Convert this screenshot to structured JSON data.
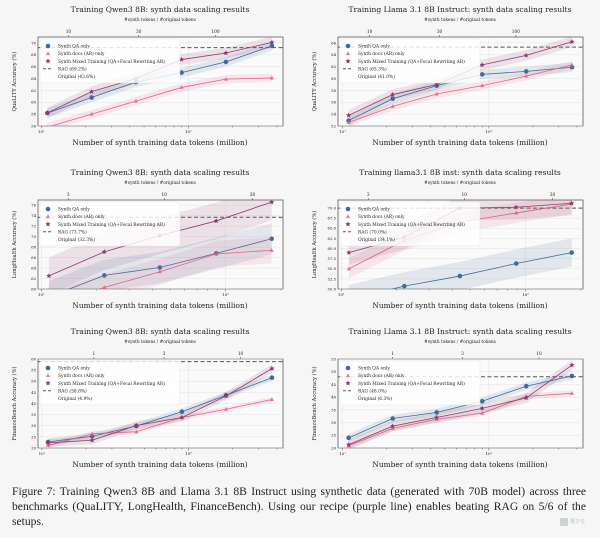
{
  "figure": {
    "caption": "Figure 7: Training Qwen3 8B and Llama 3.1 8B Instruct using synthetic data (generated with 70B model) across three benchmarks (QuaLITY, LongHealth, FinanceBench). Using our recipe (purple line) enables beating RAG on 5/6 of the setups.",
    "watermark": "量子位"
  },
  "colors": {
    "qa": "#3f6b99",
    "docs": "#e06585",
    "mixed": "#8c3a70",
    "rag": "#555555"
  },
  "chart_data": [
    {
      "type": "line",
      "title": "Training Qwen3 8B: synth data scaling results",
      "subtitle": "#synth tokens / #original tokens",
      "xlabel": "Number of synth training data tokens (million)",
      "ylabel": "QuaLITY Accuracy (%)",
      "xscale": "log",
      "xlim": [
        9.5,
        440
      ],
      "ylim": [
        56,
        71
      ],
      "yticks": [
        56,
        58,
        60,
        62,
        64,
        66,
        68,
        70
      ],
      "xticks": [
        {
          "value": 10,
          "label": "10¹"
        },
        {
          "value": 100,
          "label": "10²"
        }
      ],
      "top_ticks": [
        {
          "value": 15.3,
          "label": "10"
        },
        {
          "value": 46,
          "label": "30"
        },
        {
          "value": 153,
          "label": "100"
        }
      ],
      "x": [
        11,
        22,
        44,
        90,
        180,
        370
      ],
      "series": [
        {
          "key": "qa",
          "name": "Synth QA only",
          "values": [
            58.2,
            60.8,
            63.4,
            65.0,
            66.8,
            69.5
          ],
          "band": 0.8
        },
        {
          "key": "docs",
          "name": "Synth docs (AR) only",
          "values": [
            55.8,
            58.0,
            60.2,
            62.5,
            63.9,
            64.1
          ],
          "band": 0.7
        },
        {
          "key": "mixed",
          "name": "Synth Mixed Training (QA+Focal Rewriting AR)",
          "values": [
            58.2,
            61.8,
            64.0,
            67.2,
            68.3,
            70.1
          ],
          "band": 0.9
        }
      ],
      "rag": {
        "label": "RAG (69.2%)",
        "value": 69.2
      },
      "original": {
        "label": "Original (43.6%)"
      },
      "legend": "top-left"
    },
    {
      "type": "line",
      "title": "Training Llama 3.1 8B Instruct: synth data scaling results",
      "subtitle": "#synth tokens / #original tokens",
      "xlabel": "Number of synth training data tokens (million)",
      "ylabel": "QuaLITY Accuracy (%)",
      "xscale": "log",
      "xlim": [
        9.3,
        440
      ],
      "ylim": [
        52,
        67
      ],
      "yticks": [
        52,
        54,
        56,
        58,
        60,
        62,
        64,
        66
      ],
      "xticks": [
        {
          "value": 10,
          "label": "10¹"
        },
        {
          "value": 100,
          "label": "10²"
        }
      ],
      "top_ticks": [
        {
          "value": 15.3,
          "label": "10"
        },
        {
          "value": 46,
          "label": "30"
        },
        {
          "value": 153,
          "label": "100"
        }
      ],
      "x": [
        11,
        22,
        44,
        90,
        180,
        370
      ],
      "series": [
        {
          "key": "qa",
          "name": "Synth QA only",
          "values": [
            52.9,
            56.6,
            58.8,
            60.7,
            61.2,
            61.9
          ],
          "band": 0.8
        },
        {
          "key": "docs",
          "name": "Synth docs (AR) only",
          "values": [
            52.6,
            55.3,
            57.4,
            58.8,
            60.4,
            62.3
          ],
          "band": 0.7
        },
        {
          "key": "mixed",
          "name": "Synth Mixed Training (QA+Focal Rewriting AR)",
          "values": [
            53.8,
            57.3,
            59.0,
            62.3,
            63.9,
            66.2
          ],
          "band": 0.9
        }
      ],
      "rag": {
        "label": "RAG (65.3%)",
        "value": 65.3
      },
      "original": {
        "label": "Original (41.0%)"
      },
      "legend": "top-left"
    },
    {
      "type": "line",
      "title": "Training Qwen3 8B: synth data scaling results",
      "subtitle": "#synth tokens / #original tokens",
      "xlabel": "Number of synth training data tokens (million)",
      "ylabel": "LongHealth Accuracy (%)",
      "xscale": "log",
      "xlim": [
        9.6,
        205
      ],
      "ylim": [
        60,
        77
      ],
      "yticks": [
        60,
        62,
        64,
        66,
        68,
        70,
        72,
        74,
        76
      ],
      "xticks": [
        {
          "value": 10,
          "label": "10¹"
        },
        {
          "value": 100,
          "label": "10²"
        }
      ],
      "top_ticks": [
        {
          "value": 14,
          "label": "3"
        },
        {
          "value": 46.5,
          "label": "10"
        },
        {
          "value": 140,
          "label": "30"
        }
      ],
      "x": [
        11,
        22,
        44,
        89,
        178
      ],
      "series": [
        {
          "key": "qa",
          "name": "Synth QA only",
          "values": [
            58.5,
            62.6,
            64.1,
            66.8,
            69.6
          ],
          "band": 3.0
        },
        {
          "key": "docs",
          "name": "Synth docs (AR) only",
          "values": [
            57.0,
            60.3,
            63.3,
            66.7,
            67.4
          ],
          "band": 2.5
        },
        {
          "key": "mixed",
          "name": "Synth Mixed Training (QA+Focal Rewriting AR)",
          "values": [
            62.5,
            67.1,
            70.2,
            73.0,
            76.6
          ],
          "band": 3.5
        }
      ],
      "rag": {
        "label": "RAG (73.7%)",
        "value": 73.7
      },
      "original": {
        "label": "Original (32.3%)"
      },
      "legend": "top-left"
    },
    {
      "type": "line",
      "title": "Training llama3.1 8B inst: synth data scaling results",
      "subtitle": "#synth tokens / #original tokens",
      "xlabel": "Number of synth training data tokens (million)",
      "ylabel": "LongHealth Accuracy (%)",
      "xscale": "log",
      "xlim": [
        9.6,
        205
      ],
      "ylim": [
        50,
        72
      ],
      "yticks": [
        50.0,
        52.5,
        55.0,
        57.5,
        60.0,
        62.5,
        65.0,
        67.5,
        70.0
      ],
      "xticks": [
        {
          "value": 10,
          "label": "10¹"
        },
        {
          "value": 100,
          "label": "10²"
        }
      ],
      "top_ticks": [
        {
          "value": 14,
          "label": "3"
        },
        {
          "value": 46.5,
          "label": "10"
        },
        {
          "value": 140,
          "label": "30"
        }
      ],
      "x": [
        11,
        22,
        44,
        89,
        178
      ],
      "series": [
        {
          "key": "qa",
          "name": "Synth QA only",
          "values": [
            47.5,
            50.7,
            53.2,
            56.3,
            59.0
          ],
          "band": 3.5
        },
        {
          "key": "docs",
          "name": "Synth docs (AR) only",
          "values": [
            55.0,
            62.0,
            66.5,
            68.8,
            71.0
          ],
          "band": 2.5
        },
        {
          "key": "mixed",
          "name": "Synth Mixed Training (QA+Focal Rewriting AR)",
          "values": [
            59.0,
            62.8,
            70.0,
            70.2,
            71.2
          ],
          "band": 3.0
        }
      ],
      "rag": {
        "label": "RAG (70.0%)",
        "value": 70.0
      },
      "original": {
        "label": "Original (34.1%)"
      },
      "legend": "top-left"
    },
    {
      "type": "line",
      "title": "Training Qwen3 8B: synth data scaling results",
      "subtitle": "#synth tokens / #original tokens",
      "xlabel": "Number of synth training data tokens (million)",
      "ylabel": "FinanceBench Accuracy (%)",
      "xscale": "log",
      "xlim": [
        9.4,
        440
      ],
      "ylim": [
        20,
        60
      ],
      "yticks": [
        20,
        25,
        30,
        35,
        40,
        45,
        50,
        55,
        60
      ],
      "xticks": [
        {
          "value": 10,
          "label": "10¹"
        },
        {
          "value": 100,
          "label": "10²"
        }
      ],
      "top_ticks": [
        {
          "value": 22.6,
          "label": "1"
        },
        {
          "value": 68,
          "label": "3"
        },
        {
          "value": 226,
          "label": "10"
        }
      ],
      "x": [
        11,
        22,
        44,
        90,
        180,
        370
      ],
      "series": [
        {
          "key": "qa",
          "name": "Synth QA only",
          "values": [
            22.7,
            25.3,
            29.9,
            36.3,
            43.7,
            51.6
          ],
          "band": 1.5
        },
        {
          "key": "docs",
          "name": "Synth docs (AR) only",
          "values": [
            21.1,
            26.4,
            27.3,
            33.7,
            37.4,
            41.8
          ],
          "band": 1.2
        },
        {
          "key": "mixed",
          "name": "Synth Mixed Training (QA+Focal Rewriting AR)",
          "values": [
            22.3,
            23.5,
            30.1,
            33.7,
            43.4,
            55.7
          ],
          "band": 1.8
        }
      ],
      "rag": {
        "label": "RAG (58.8%)",
        "value": 58.8
      },
      "original": {
        "label": "Original (4.9%)"
      },
      "legend": "top-left"
    },
    {
      "type": "line",
      "title": "Training Llama 3.1 8B Instruct: synth data scaling results",
      "subtitle": "#synth tokens / #original tokens",
      "xlabel": "Number of synth training data tokens (million)",
      "ylabel": "FinanceBench Accuracy (%)",
      "xscale": "log",
      "xlim": [
        9.3,
        440
      ],
      "ylim": [
        20,
        55
      ],
      "yticks": [
        20,
        25,
        30,
        35,
        40,
        45,
        50,
        55
      ],
      "xticks": [
        {
          "value": 10,
          "label": "10¹"
        },
        {
          "value": 100,
          "label": "10²"
        }
      ],
      "top_ticks": [
        {
          "value": 22,
          "label": "1"
        },
        {
          "value": 66,
          "label": "3"
        },
        {
          "value": 220,
          "label": "10"
        }
      ],
      "x": [
        11,
        22,
        44,
        90,
        180,
        370
      ],
      "series": [
        {
          "key": "qa",
          "name": "Synth QA only",
          "values": [
            24.0,
            31.6,
            34.0,
            38.4,
            44.3,
            48.3
          ],
          "band": 1.5
        },
        {
          "key": "docs",
          "name": "Synth docs (AR) only",
          "values": [
            20.9,
            27.7,
            31.3,
            33.7,
            40.3,
            41.5
          ],
          "band": 1.2
        },
        {
          "key": "mixed",
          "name": "Synth Mixed Training (QA+Focal Rewriting AR)",
          "values": [
            21.3,
            28.6,
            32.0,
            35.6,
            39.7,
            52.6
          ],
          "band": 2.0
        }
      ],
      "rag": {
        "label": "RAG (48.0%)",
        "value": 48.0
      },
      "original": {
        "label": "Original (6.3%)"
      },
      "legend": "top-left"
    }
  ]
}
